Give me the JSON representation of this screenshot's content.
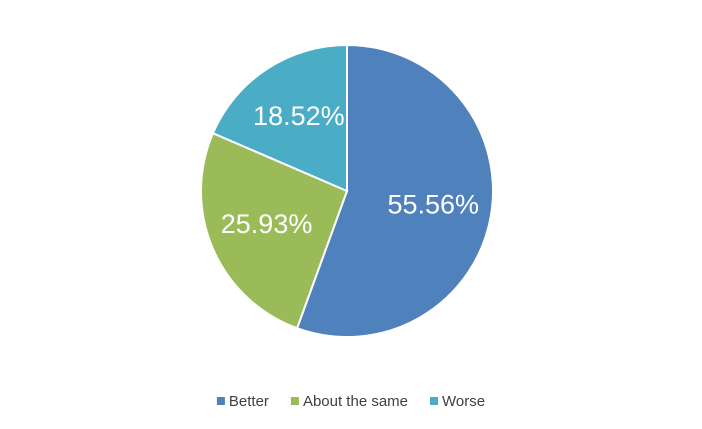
{
  "chart_data": {
    "type": "pie",
    "categories": [
      "Better",
      "About the same",
      "Worse"
    ],
    "values": [
      55.56,
      25.93,
      18.52
    ],
    "value_labels": [
      "55.56%",
      "25.93%",
      "18.52%"
    ],
    "colors": [
      "#4f81bd",
      "#9bbb59",
      "#4bacc6"
    ],
    "legend": "bottom"
  }
}
